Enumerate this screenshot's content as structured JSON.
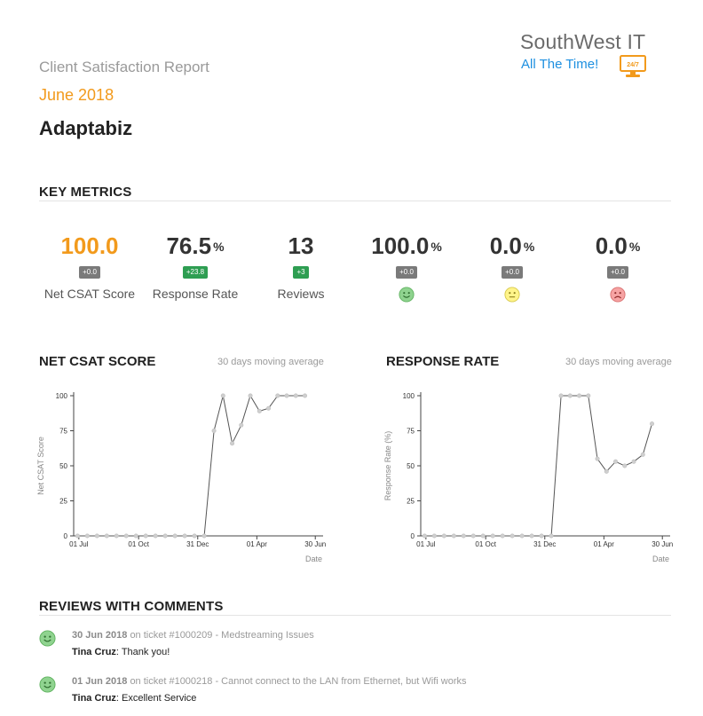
{
  "header": {
    "report_title": "Client Satisfaction Report",
    "month": "June 2018",
    "client": "Adaptabiz"
  },
  "logo": {
    "name": "SouthWest IT",
    "tagline": "All The Time!",
    "badge": "24/7",
    "brand_color": "#1d8fe0",
    "accent_color": "#f29a1c"
  },
  "key_metrics": {
    "heading": "KEY METRICS",
    "items": [
      {
        "value": "100.0",
        "unit": "",
        "delta": "+0.0",
        "delta_color": "gray",
        "label": "Net CSAT Score",
        "icon": ""
      },
      {
        "value": "76.5",
        "unit": "%",
        "delta": "+23.8",
        "delta_color": "green",
        "label": "Response Rate",
        "icon": ""
      },
      {
        "value": "13",
        "unit": "",
        "delta": "+3",
        "delta_color": "green",
        "label": "Reviews",
        "icon": ""
      },
      {
        "value": "100.0",
        "unit": "%",
        "delta": "+0.0",
        "delta_color": "gray",
        "label": "",
        "icon": "happy-face-icon"
      },
      {
        "value": "0.0",
        "unit": "%",
        "delta": "+0.0",
        "delta_color": "gray",
        "label": "",
        "icon": "neutral-face-icon"
      },
      {
        "value": "0.0",
        "unit": "%",
        "delta": "+0.0",
        "delta_color": "gray",
        "label": "",
        "icon": "sad-face-icon"
      }
    ]
  },
  "chart_data": [
    {
      "type": "line",
      "title": "NET CSAT SCORE",
      "note": "30 days moving average",
      "ylabel": "Net CSAT Score",
      "xlabel": "Date",
      "ylim": [
        0,
        100
      ],
      "yticks": [
        "0",
        "25",
        "50",
        "75",
        "100"
      ],
      "xtick_labels": [
        "01 Jul",
        "01 Oct",
        "31 Dec",
        "01 Apr",
        "30 Jun"
      ],
      "xtick_days": [
        0,
        92,
        183,
        274,
        364
      ],
      "x_range_days": [
        -8,
        376
      ],
      "color": "#555555",
      "points": [
        [
          -2,
          0
        ],
        [
          13,
          0
        ],
        [
          28,
          0
        ],
        [
          43,
          0
        ],
        [
          58,
          0
        ],
        [
          73,
          0
        ],
        [
          88,
          0
        ],
        [
          103,
          0
        ],
        [
          118,
          0
        ],
        [
          133,
          0
        ],
        [
          148,
          0
        ],
        [
          163,
          0
        ],
        [
          178,
          0
        ],
        [
          193,
          0
        ],
        [
          208,
          75
        ],
        [
          222,
          100
        ],
        [
          236,
          66
        ],
        [
          250,
          79
        ],
        [
          264,
          100
        ],
        [
          278,
          89
        ],
        [
          292,
          91
        ],
        [
          306,
          100
        ],
        [
          320,
          100
        ],
        [
          334,
          100
        ],
        [
          348,
          100
        ]
      ]
    },
    {
      "type": "line",
      "title": "RESPONSE RATE",
      "note": "30 days moving average",
      "ylabel": "Response Rate (%)",
      "xlabel": "Date",
      "ylim": [
        0,
        100
      ],
      "yticks": [
        "0",
        "25",
        "50",
        "75",
        "100"
      ],
      "xtick_labels": [
        "01 Jul",
        "01 Oct",
        "31 Dec",
        "01 Apr",
        "30 Jun"
      ],
      "xtick_days": [
        0,
        92,
        183,
        274,
        364
      ],
      "x_range_days": [
        -8,
        376
      ],
      "color": "#555555",
      "points": [
        [
          -2,
          0
        ],
        [
          13,
          0
        ],
        [
          28,
          0
        ],
        [
          43,
          0
        ],
        [
          58,
          0
        ],
        [
          73,
          0
        ],
        [
          88,
          0
        ],
        [
          103,
          0
        ],
        [
          118,
          0
        ],
        [
          133,
          0
        ],
        [
          148,
          0
        ],
        [
          163,
          0
        ],
        [
          178,
          0
        ],
        [
          193,
          0
        ],
        [
          208,
          100
        ],
        [
          222,
          100
        ],
        [
          236,
          100
        ],
        [
          250,
          100
        ],
        [
          264,
          55
        ],
        [
          278,
          46
        ],
        [
          292,
          53
        ],
        [
          306,
          50
        ],
        [
          320,
          53
        ],
        [
          334,
          58
        ],
        [
          348,
          80
        ]
      ]
    }
  ],
  "reviews": {
    "heading": "REVIEWS WITH COMMENTS",
    "items": [
      {
        "date": "30 Jun 2018",
        "ticket_text": "on ticket #1000209 - Medstreaming Issues",
        "author": "Tina Cruz",
        "comment": ": Thank you!"
      },
      {
        "date": "01 Jun 2018",
        "ticket_text": "on ticket #1000218 - Cannot connect to the LAN from Ethernet, but Wifi works",
        "author": "Tina Cruz",
        "comment": ": Excellent Service"
      }
    ]
  }
}
